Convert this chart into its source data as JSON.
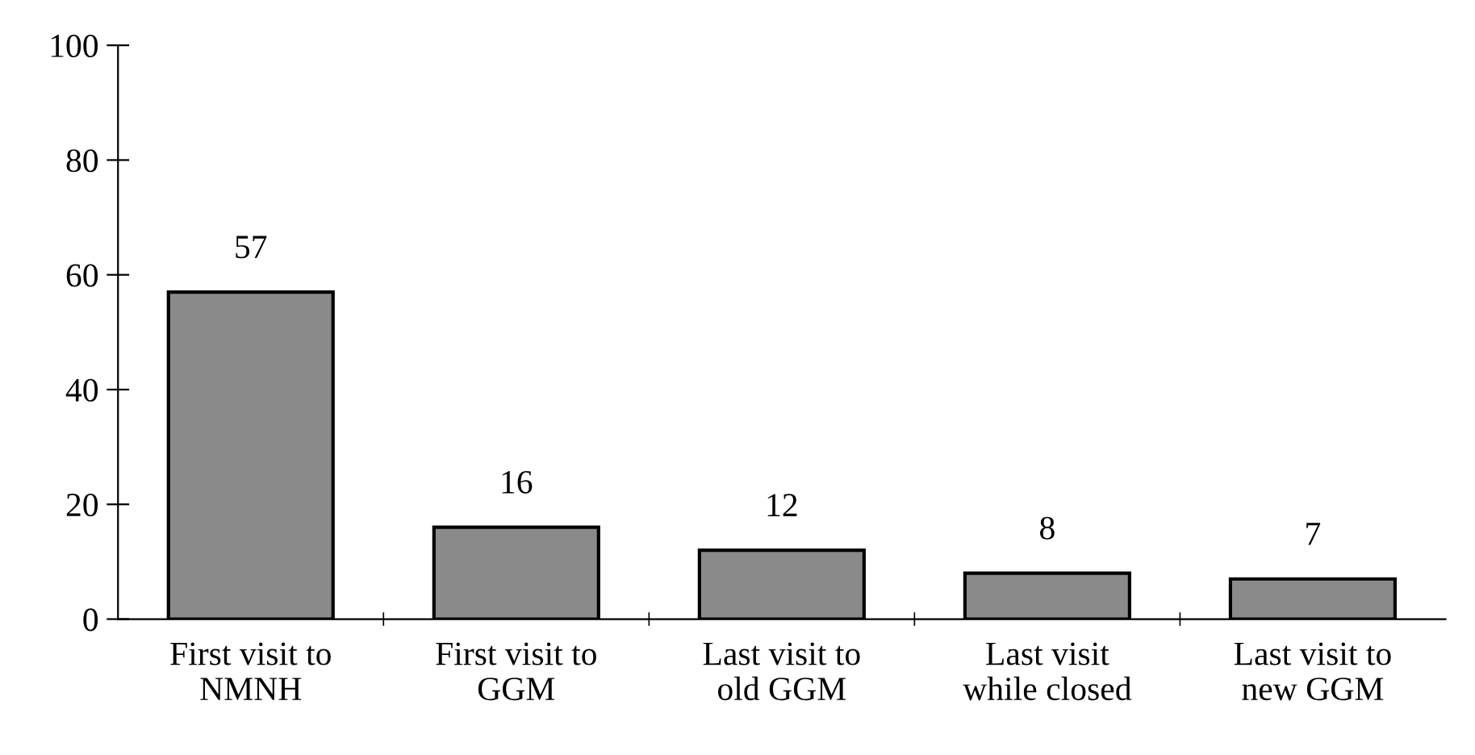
{
  "chart_data": {
    "type": "bar",
    "categories": [
      "First visit to\nNMNH",
      "First visit to\nGGM",
      "Last visit to\nold GGM",
      "Last visit\nwhile closed",
      "Last visit to\nnew GGM"
    ],
    "values": [
      57,
      16,
      12,
      8,
      7
    ],
    "color": "#8a8a8a",
    "ylim": [
      0,
      100
    ],
    "yticks": [
      0,
      20,
      40,
      60,
      80,
      100
    ],
    "data_labels": true,
    "grid": false,
    "legend": false
  }
}
